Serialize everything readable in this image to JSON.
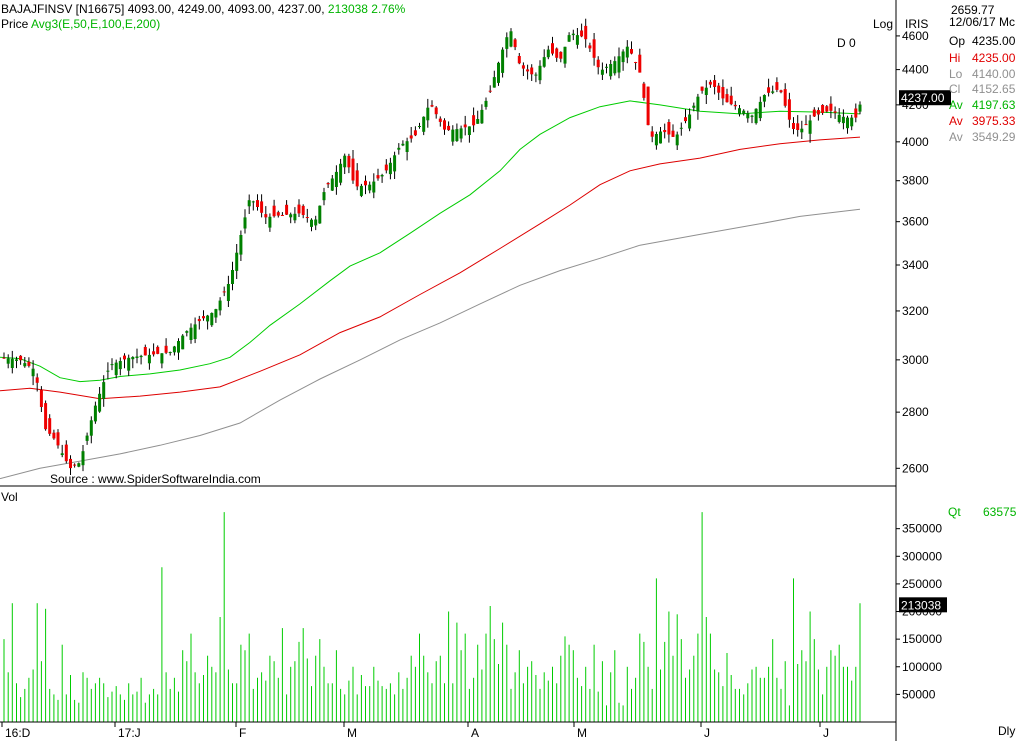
{
  "header": {
    "symbol_line": "BAJAJFINSV [N16675] 4093.00, 4249.00, 4093.00, 4237.00,",
    "volume_change": "213038  2.76%",
    "price_label": "Price",
    "avg_label": "Avg3(E,50,E,100,E,200)",
    "log_label": "Log",
    "iris_label": "IRIS",
    "top_value": "2659.77",
    "date_label": "12/06/17 Mc",
    "d_label": "D 0",
    "vol_label": "Vol",
    "source": "Source : www.SpiderSoftwareIndia.com",
    "dly_label": "Dly"
  },
  "info_panel": {
    "op_label": "Op",
    "op_value": "4235.00",
    "hi_label": "Hi",
    "hi_value": "4235.00",
    "lo_label": "Lo",
    "lo_value": "4140.00",
    "cl_label": "Cl",
    "cl_value": "4152.65",
    "av1_label": "Av",
    "av1_value": "4197.63",
    "av2_label": "Av",
    "av2_value": "3975.33",
    "av3_label": "Av",
    "av3_value": "3549.29",
    "qt_label": "Qt",
    "qt_value": "63575"
  },
  "chart_data": [
    {
      "type": "candlestick",
      "title": "BAJAJFINSV",
      "y_scale": "log",
      "ylim": [
        2540,
        4760
      ],
      "yticks": [
        2600,
        2800,
        3000,
        3200,
        3400,
        3600,
        3800,
        4000,
        4200,
        4400,
        4600
      ],
      "x_tick_labels": [
        "16:D",
        "17:J",
        "F",
        "M",
        "A",
        "M",
        "J",
        "J"
      ],
      "last_price_label": "4237.00",
      "series": [
        {
          "name": "Price"
        },
        {
          "name": "E50",
          "color": "#00cc00",
          "points": [
            [
              0,
              3010
            ],
            [
              20,
              3005
            ],
            [
              40,
              2975
            ],
            [
              60,
              2930
            ],
            [
              80,
              2915
            ],
            [
              100,
              2920
            ],
            [
              120,
              2935
            ],
            [
              150,
              2945
            ],
            [
              180,
              2960
            ],
            [
              210,
              2985
            ],
            [
              230,
              3010
            ],
            [
              250,
              3070
            ],
            [
              270,
              3140
            ],
            [
              300,
              3230
            ],
            [
              330,
              3330
            ],
            [
              350,
              3395
            ],
            [
              380,
              3455
            ],
            [
              410,
              3545
            ],
            [
              440,
              3640
            ],
            [
              470,
              3730
            ],
            [
              500,
              3850
            ],
            [
              520,
              3960
            ],
            [
              540,
              4040
            ],
            [
              570,
              4130
            ],
            [
              600,
              4190
            ],
            [
              630,
              4222
            ],
            [
              660,
              4200
            ],
            [
              700,
              4165
            ],
            [
              740,
              4150
            ],
            [
              780,
              4165
            ],
            [
              820,
              4160
            ],
            [
              860,
              4150
            ]
          ]
        },
        {
          "name": "E100",
          "color": "#dd0000",
          "points": [
            [
              0,
              2880
            ],
            [
              30,
              2890
            ],
            [
              60,
              2875
            ],
            [
              100,
              2850
            ],
            [
              140,
              2860
            ],
            [
              180,
              2875
            ],
            [
              220,
              2895
            ],
            [
              260,
              2955
            ],
            [
              300,
              3020
            ],
            [
              340,
              3110
            ],
            [
              380,
              3175
            ],
            [
              420,
              3270
            ],
            [
              460,
              3365
            ],
            [
              500,
              3475
            ],
            [
              540,
              3590
            ],
            [
              570,
              3680
            ],
            [
              600,
              3780
            ],
            [
              630,
              3850
            ],
            [
              660,
              3885
            ],
            [
              700,
              3915
            ],
            [
              740,
              3960
            ],
            [
              780,
              3990
            ],
            [
              820,
              4010
            ],
            [
              860,
              4025
            ]
          ]
        },
        {
          "name": "E200",
          "color": "#909090",
          "points": [
            [
              0,
              2565
            ],
            [
              40,
              2600
            ],
            [
              80,
              2625
            ],
            [
              120,
              2650
            ],
            [
              160,
              2680
            ],
            [
              200,
              2715
            ],
            [
              240,
              2760
            ],
            [
              280,
              2845
            ],
            [
              320,
              2925
            ],
            [
              360,
              3000
            ],
            [
              400,
              3080
            ],
            [
              440,
              3150
            ],
            [
              480,
              3230
            ],
            [
              520,
              3310
            ],
            [
              560,
              3375
            ],
            [
              600,
              3430
            ],
            [
              640,
              3490
            ],
            [
              700,
              3540
            ],
            [
              760,
              3590
            ],
            [
              800,
              3625
            ],
            [
              860,
              3660
            ]
          ]
        }
      ]
    },
    {
      "type": "bar",
      "title": "Vol",
      "ylim": [
        0,
        420000
      ],
      "yticks": [
        50000,
        100000,
        150000,
        200000,
        250000,
        300000,
        350000
      ],
      "last_volume_label": "213038",
      "values": [
        150000,
        90000,
        215000,
        70000,
        45000,
        60000,
        80000,
        95000,
        215000,
        110000,
        205000,
        60000,
        50000,
        40000,
        140000,
        50000,
        85000,
        40000,
        35000,
        90000,
        80000,
        60000,
        70000,
        80000,
        70000,
        45000,
        55000,
        65000,
        50000,
        40000,
        70000,
        50000,
        55000,
        80000,
        35000,
        50000,
        60000,
        50000,
        280000,
        90000,
        60000,
        80000,
        55000,
        130000,
        110000,
        160000,
        90000,
        70000,
        85000,
        120000,
        100000,
        90000,
        190000,
        380000,
        95000,
        70000,
        70000,
        140000,
        130000,
        160000,
        60000,
        80000,
        90000,
        75000,
        120000,
        110000,
        80000,
        170000,
        50000,
        100000,
        110000,
        145000,
        170000,
        115000,
        65000,
        120000,
        150000,
        100000,
        70000,
        70000,
        130000,
        60000,
        50000,
        75000,
        100000,
        50000,
        85000,
        65000,
        65000,
        100000,
        75000,
        65000,
        60000,
        70000,
        50000,
        90000,
        60000,
        80000,
        120000,
        100000,
        160000,
        120000,
        90000,
        70000,
        110000,
        120000,
        70000,
        200000,
        70000,
        180000,
        130000,
        160000,
        60000,
        80000,
        140000,
        95000,
        160000,
        210000,
        150000,
        105000,
        180000,
        140000,
        60000,
        90000,
        130000,
        70000,
        100000,
        110000,
        85000,
        60000,
        90000,
        75000,
        100000,
        70000,
        120000,
        155000,
        140000,
        130000,
        80000,
        65000,
        100000,
        60000,
        140000,
        55000,
        110000,
        30000,
        90000,
        130000,
        35000,
        30000,
        100000,
        60000,
        80000,
        160000,
        145000,
        100000,
        60000,
        260000,
        95000,
        145000,
        200000,
        120000,
        195000,
        150000,
        80000,
        95000,
        120000,
        160000,
        380000,
        190000,
        160000,
        95000,
        90000,
        65000,
        125000,
        85000,
        60000,
        60000,
        50000,
        70000,
        95000,
        100000,
        80000,
        80000,
        100000,
        150000,
        80000,
        60000,
        110000,
        30000,
        260000,
        105000,
        130000,
        110000,
        200000,
        150000,
        95000,
        50000,
        100000,
        130000,
        120000,
        140000,
        100000,
        100000,
        75000,
        100000,
        215000
      ]
    }
  ]
}
